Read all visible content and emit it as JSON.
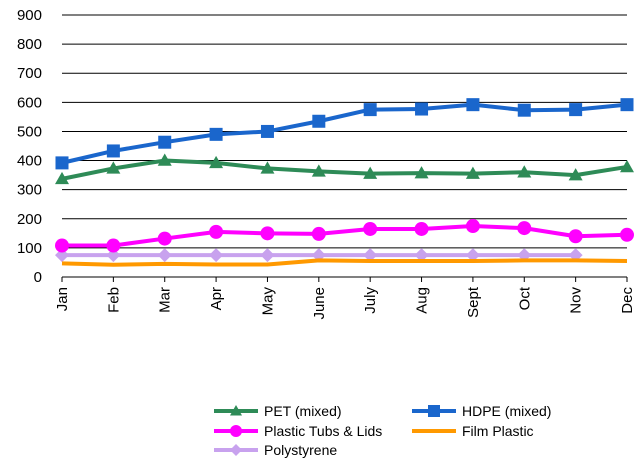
{
  "chart_data": {
    "type": "line",
    "title": "",
    "xlabel": "",
    "ylabel": "",
    "categories": [
      "Jan",
      "Feb",
      "Mar",
      "Apr",
      "May",
      "June",
      "July",
      "Aug",
      "Sept",
      "Oct",
      "Nov",
      "Dec"
    ],
    "ylim": [
      0,
      900
    ],
    "yticks": [
      0,
      100,
      200,
      300,
      400,
      500,
      600,
      700,
      800,
      900
    ],
    "grid": "horizontal",
    "legend_position": "bottom",
    "series": [
      {
        "name": "PET (mixed)",
        "color": "#2e8b57",
        "marker": "triangle",
        "values": [
          337,
          373,
          400,
          392,
          373,
          363,
          355,
          357,
          355,
          360,
          350,
          378
        ]
      },
      {
        "name": "HDPE (mixed)",
        "color": "#1a66cc",
        "marker": "square",
        "values": [
          392,
          433,
          463,
          490,
          500,
          535,
          575,
          577,
          592,
          573,
          575,
          592
        ]
      },
      {
        "name": "Plastic Tubs & Lids",
        "color": "#ff00ff",
        "marker": "circle",
        "values": [
          108,
          108,
          132,
          155,
          150,
          148,
          165,
          165,
          175,
          168,
          140,
          145
        ]
      },
      {
        "name": "Film Plastic",
        "color": "#ff9900",
        "marker": "none",
        "values": [
          47,
          42,
          45,
          43,
          43,
          57,
          55,
          55,
          55,
          57,
          57,
          55
        ]
      },
      {
        "name": "Polystyrene",
        "color": "#c8a2ee",
        "marker": "diamond",
        "values": [
          75,
          75,
          75,
          75,
          75,
          75,
          75,
          75,
          75,
          75,
          75,
          null
        ]
      }
    ]
  }
}
